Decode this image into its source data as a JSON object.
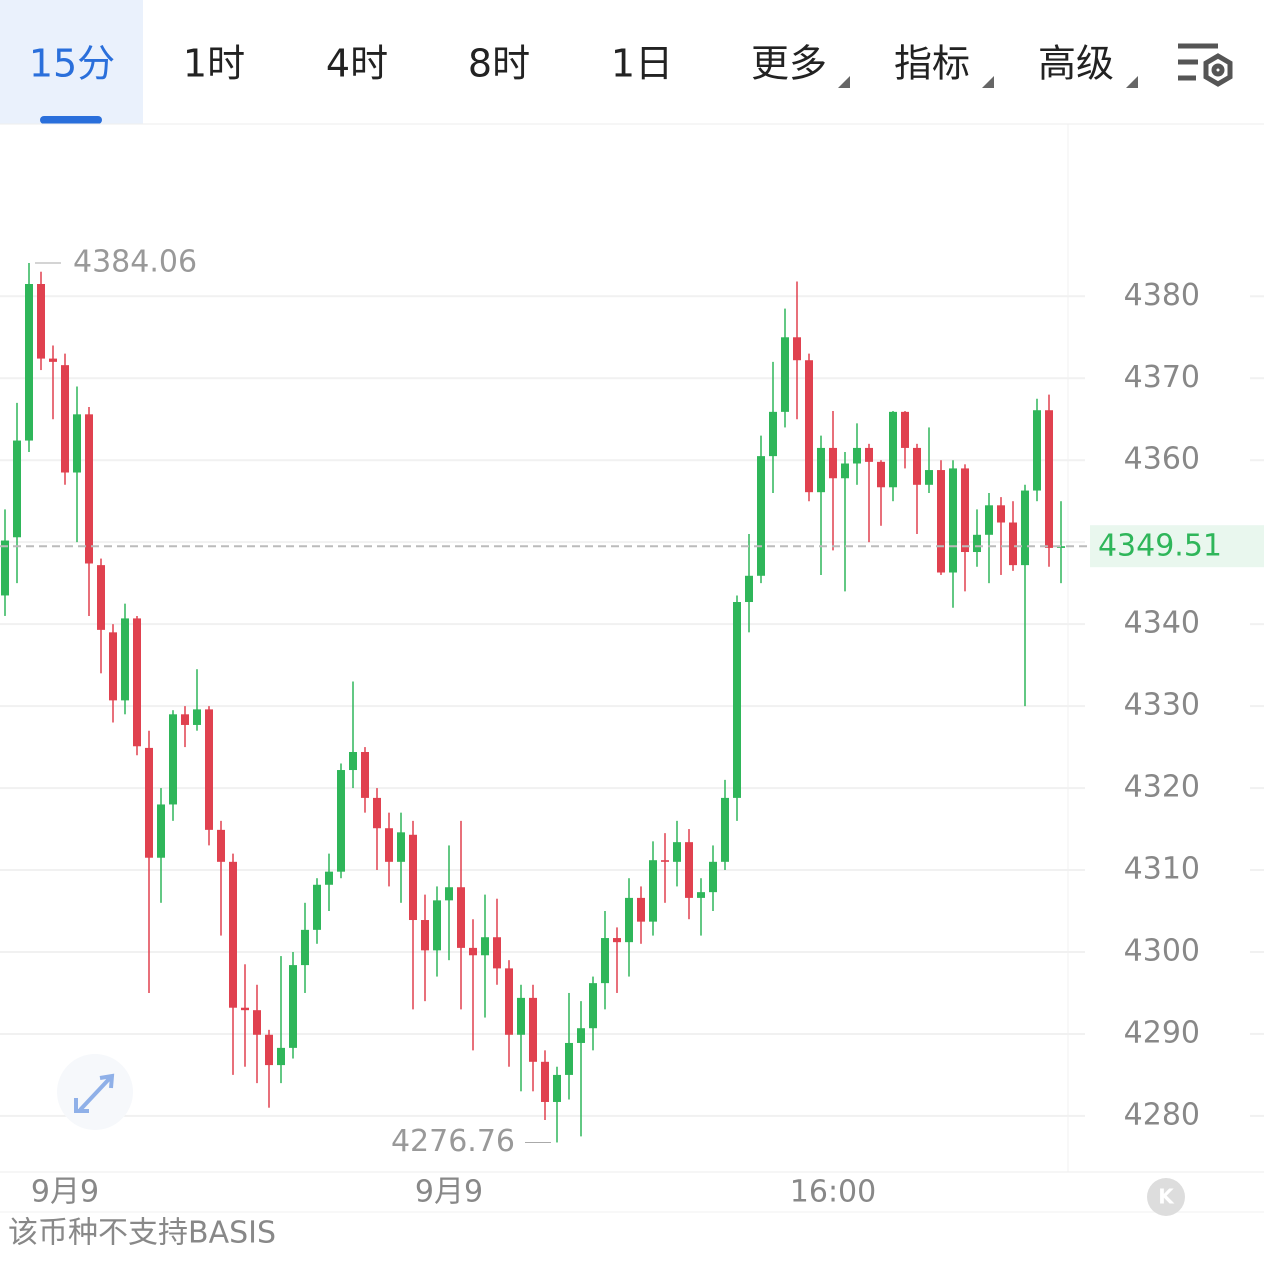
{
  "tabs": [
    "15分",
    "1时",
    "4时",
    "8时",
    "1日",
    "更多",
    "指标",
    "高级"
  ],
  "chart_data": {
    "type": "candlestick",
    "up_color": "#2fb65a",
    "down_color": "#e0414f",
    "grid": true,
    "ylim": [
      4273.4,
      4400.9
    ],
    "yticks": [
      4280,
      4290,
      4300,
      4310,
      4320,
      4330,
      4340,
      4350,
      4360,
      4370,
      4380
    ],
    "yticks_shown": [
      4280,
      4290,
      4300,
      4310,
      4320,
      4330,
      4340,
      4360,
      4370,
      4380
    ],
    "xlabels": [
      {
        "index": 5,
        "label": "9月9"
      },
      {
        "index": 37,
        "label": "9月9"
      },
      {
        "index": 69,
        "label": "16:00"
      }
    ],
    "open": [
      4343.5,
      4350.6,
      4362.4,
      4381.5,
      4372.4,
      4371.6,
      4358.5,
      4365.6,
      4347.2,
      4339,
      4330.7,
      4340.7,
      4324.9,
      4311.5,
      4318,
      4329,
      4327.7,
      4329.6,
      4314.9,
      4311,
      4293.2,
      4292.9,
      4289.9,
      4286.2,
      4288.3,
      4298.4,
      4302.7,
      4308.2,
      4309.8,
      4322.2,
      4324.4,
      4318.8,
      4315.1,
      4311,
      4314.3,
      4303.9,
      4300.2,
      4306.3,
      4307.9,
      4300.5,
      4299.6,
      4301.8,
      4298,
      4289.9,
      4294.4,
      4286.6,
      4281.7,
      4285,
      4288.9,
      4290.7,
      4296.2,
      4301.7,
      4301.2,
      4306.6,
      4303.7,
      4311.2,
      4311,
      4313.4,
      4306.6,
      4307.3,
      4311,
      4318.8,
      4342.7,
      4345.9,
      4360.5,
      4365.9,
      4375,
      4372.2,
      4356.1,
      4361.5,
      4357.8,
      4359.6,
      4361.5,
      4359.8,
      4356.7,
      4365.9,
      4361.5,
      4357,
      4358.8,
      4346.3,
      4359,
      4348.8,
      4350.9,
      4354.5,
      4352.4,
      4347.2,
      4356.3,
      4366.1,
      4349.3
    ],
    "high": [
      4354,
      4367,
      4384.06,
      4383,
      4374,
      4373,
      4369,
      4366.5,
      4348,
      4340,
      4342.5,
      4341,
      4327,
      4320,
      4329.5,
      4330,
      4334.5,
      4330,
      4316,
      4312,
      4298.5,
      4296,
      4290.5,
      4299.5,
      4300,
      4306,
      4309,
      4312,
      4323,
      4333,
      4325,
      4320,
      4317,
      4317,
      4316,
      4307,
      4308,
      4313,
      4316,
      4304,
      4307,
      4306.5,
      4299,
      4296,
      4296,
      4288,
      4286,
      4295,
      4294,
      4297,
      4305,
      4303,
      4309,
      4308,
      4313.5,
      4314.5,
      4316,
      4315,
      4309,
      4313,
      4321,
      4343.5,
      4351,
      4363,
      4372,
      4378.5,
      4381.8,
      4373,
      4363,
      4366,
      4361,
      4364.5,
      4362,
      4360,
      4366,
      4366,
      4362,
      4364,
      4360,
      4360,
      4359.5,
      4354,
      4356,
      4355.5,
      4355,
      4357,
      4367.5,
      4368,
      4355
    ],
    "low": [
      4341,
      4345,
      4361,
      4371,
      4365,
      4357,
      4350,
      4341,
      4334,
      4328,
      4329,
      4324,
      4295,
      4306,
      4316,
      4325,
      4327,
      4313,
      4302,
      4285,
      4286,
      4284,
      4281,
      4284,
      4287,
      4295,
      4301,
      4305,
      4309,
      4320,
      4317,
      4310,
      4308,
      4306,
      4293,
      4294,
      4297,
      4299,
      4293,
      4288,
      4292,
      4296,
      4286,
      4283,
      4283,
      4279.5,
      4276.76,
      4282,
      4277.5,
      4288,
      4293,
      4295,
      4297,
      4301,
      4302,
      4306,
      4308,
      4304,
      4302,
      4305,
      4310,
      4316,
      4339,
      4345,
      4356,
      4364,
      4365,
      4355,
      4346,
      4349,
      4344,
      4357,
      4350,
      4352,
      4355,
      4359,
      4351,
      4356,
      4346,
      4342,
      4344,
      4347,
      4345,
      4346,
      4346.5,
      4330,
      4355,
      4347,
      4345
    ],
    "close": [
      4350.2,
      4362.4,
      4381.5,
      4372.4,
      4372,
      4358.5,
      4365.6,
      4347.4,
      4339.3,
      4330.7,
      4340.7,
      4325.1,
      4311.5,
      4318,
      4329,
      4327.7,
      4329.6,
      4314.9,
      4311,
      4293.2,
      4292.9,
      4289.9,
      4286.2,
      4288.3,
      4298.4,
      4302.7,
      4308.2,
      4309.8,
      4322.2,
      4324.4,
      4318.8,
      4315.1,
      4311,
      4314.6,
      4303.9,
      4300.2,
      4306.3,
      4307.9,
      4300.5,
      4299.6,
      4301.8,
      4298,
      4289.9,
      4294.4,
      4286.6,
      4281.7,
      4285,
      4288.9,
      4290.7,
      4296.2,
      4301.7,
      4301.2,
      4306.6,
      4303.7,
      4311.2,
      4311,
      4313.4,
      4306.6,
      4307.3,
      4311,
      4318.8,
      4342.7,
      4345.9,
      4360.5,
      4365.9,
      4375,
      4372.2,
      4356.1,
      4361.5,
      4357.8,
      4359.6,
      4361.5,
      4359.8,
      4356.7,
      4365.9,
      4361.5,
      4357,
      4358.8,
      4346.3,
      4359,
      4348.8,
      4350.9,
      4354.5,
      4352.4,
      4347.2,
      4356.3,
      4366.1,
      4349.3,
      4349.51
    ],
    "high_label": "4384.06",
    "low_label": "4276.76"
  },
  "footer": "该币种不支持BASIS"
}
